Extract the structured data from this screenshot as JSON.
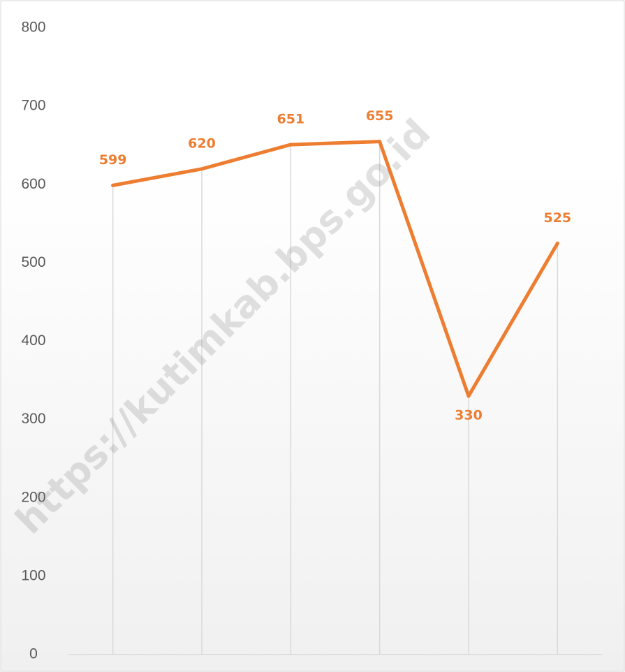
{
  "chart_data": {
    "type": "line",
    "title": "",
    "xlabel": "",
    "ylabel": "",
    "ylim": [
      0,
      800
    ],
    "yticks": [
      0,
      100,
      200,
      300,
      400,
      500,
      600,
      700,
      800
    ],
    "grid": "vertical",
    "legend": "none",
    "categories": [
      "",
      "",
      "",
      "",
      "",
      ""
    ],
    "series": [
      {
        "values": [
          599,
          620,
          651,
          655,
          330,
          525
        ],
        "color": "#ED7D31"
      }
    ],
    "data_labels": true
  },
  "watermark": {
    "text": "https://kutimkab.bps.go.id"
  },
  "colors": {
    "line": "#ED7D31",
    "label": "#ED7D31",
    "grid": "#d9d9d9",
    "background_top": "#ffffff",
    "background_bottom": "#f0f0f0",
    "border": "#d9d9d9"
  }
}
